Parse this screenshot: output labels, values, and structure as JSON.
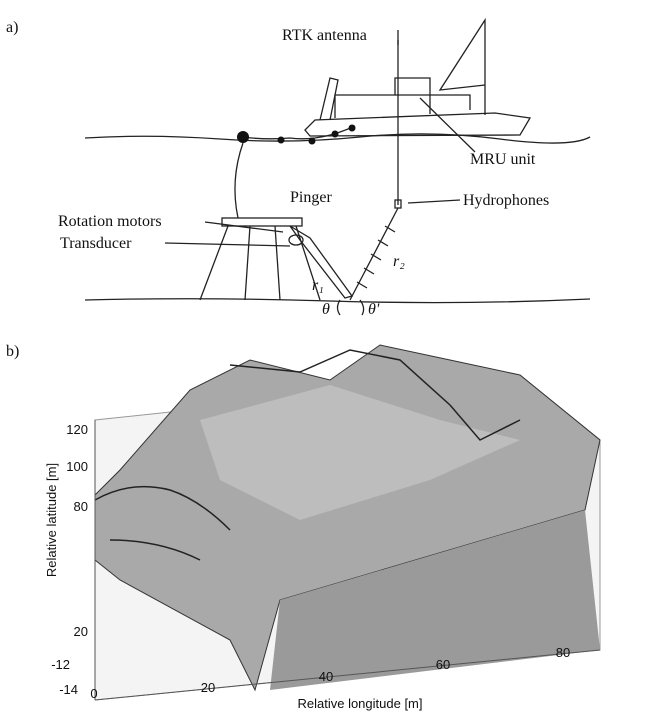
{
  "panel_a": {
    "label": "a)",
    "labels": {
      "rtk_antenna": "RTK antenna",
      "mru_unit": "MRU unit",
      "pinger": "Pinger",
      "hydrophones": "Hydrophones",
      "rotation_motors": "Rotation motors",
      "transducer": "Transducer",
      "r1": "r₁",
      "r2": "r₂",
      "theta": "θ",
      "theta_prime": "θ'"
    }
  },
  "panel_b": {
    "label": "b)",
    "x_label": "Relative longitude [m]",
    "y_label": "Relative latitude [m]",
    "x_ticks": [
      "0",
      "20",
      "40",
      "60",
      "80"
    ],
    "y_ticks": [
      "120",
      "100",
      "80",
      "20"
    ],
    "z_ticks": [
      "-12",
      "-14"
    ]
  }
}
